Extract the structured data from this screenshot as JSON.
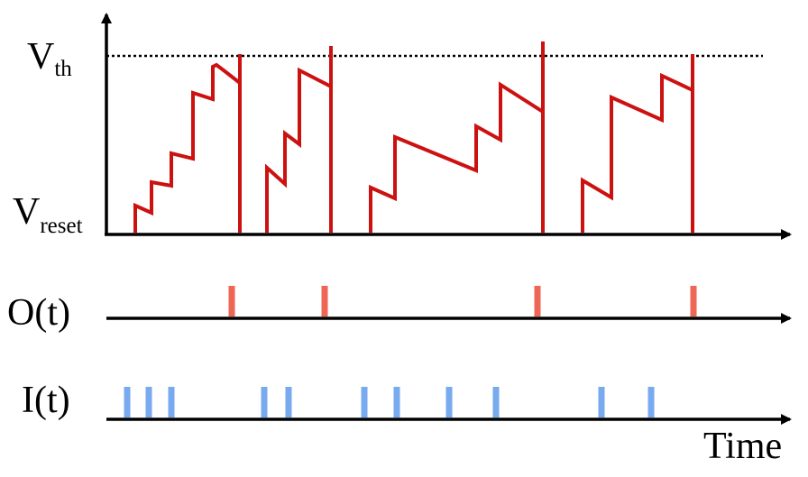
{
  "labels": {
    "v_threshold_main": "V",
    "v_threshold_sub": "th",
    "v_reset_main": "V",
    "v_reset_sub": "reset",
    "output_signal": "O(t)",
    "input_signal": "I(t)",
    "time_axis": "Time"
  },
  "colors": {
    "membrane_trace": "#cc1111",
    "output_spike": "#ee6655",
    "input_spike": "#77aaee",
    "axis": "#000000"
  },
  "membrane_segments": [
    [
      [
        150,
        258
      ],
      [
        150,
        228
      ],
      [
        168,
        236
      ],
      [
        168,
        202
      ],
      [
        190,
        206
      ],
      [
        190,
        170
      ],
      [
        214,
        176
      ],
      [
        214,
        103
      ],
      [
        236,
        110
      ],
      [
        236,
        74
      ],
      [
        240,
        72
      ],
      [
        248,
        78
      ],
      [
        266,
        92
      ],
      [
        266,
        258
      ]
    ],
    [
      [
        296,
        258
      ],
      [
        296,
        186
      ],
      [
        316,
        204
      ],
      [
        316,
        148
      ],
      [
        332,
        160
      ],
      [
        332,
        78
      ],
      [
        367,
        96
      ],
      [
        367,
        258
      ]
    ],
    [
      [
        411,
        258
      ],
      [
        411,
        208
      ],
      [
        438,
        220
      ],
      [
        438,
        152
      ],
      [
        528,
        189
      ],
      [
        528,
        140
      ],
      [
        555,
        155
      ],
      [
        555,
        94
      ],
      [
        602,
        124
      ],
      [
        602,
        258
      ]
    ],
    [
      [
        646,
        258
      ],
      [
        646,
        200
      ],
      [
        678,
        219
      ],
      [
        678,
        108
      ],
      [
        734,
        133
      ],
      [
        734,
        84
      ],
      [
        768,
        100
      ],
      [
        768,
        258
      ]
    ]
  ],
  "spike_peaks": [
    {
      "x": 266,
      "top": 60
    },
    {
      "x": 367,
      "top": 51
    },
    {
      "x": 602,
      "top": 46
    },
    {
      "x": 768,
      "top": 60
    }
  ],
  "output_spike_times": [
    257,
    360,
    596,
    769
  ],
  "input_spike_times": [
    141,
    165,
    190,
    293,
    320,
    404,
    440,
    498,
    550,
    667,
    722
  ]
}
